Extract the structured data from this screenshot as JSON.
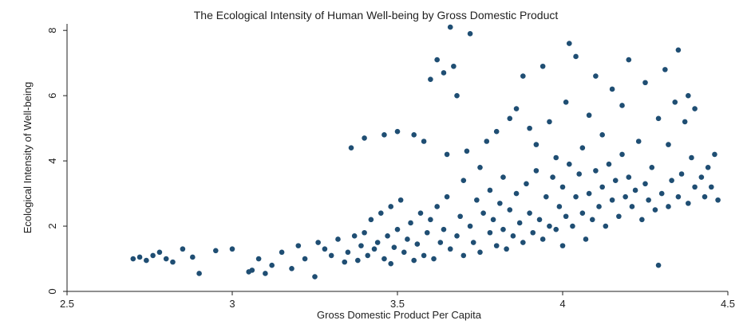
{
  "chart_data": {
    "type": "scatter",
    "title": "The Ecological Intensity of Human Well-being by Gross Domestic Product",
    "xlabel": "Gross Domestic Product Per Capita",
    "ylabel": "Ecological Intensity of Well-being",
    "xlim": [
      2.5,
      4.5
    ],
    "ylim": [
      0,
      8.2
    ],
    "x_ticks": [
      "2.5",
      "3",
      "3.5",
      "4",
      "4.5"
    ],
    "y_ticks": [
      "0",
      "2",
      "4",
      "6",
      "8"
    ],
    "grid": false,
    "marker_color": "#1f4e73",
    "background": "#ffffff",
    "points": [
      [
        2.7,
        1.0
      ],
      [
        2.72,
        1.05
      ],
      [
        2.74,
        0.95
      ],
      [
        2.76,
        1.1
      ],
      [
        2.78,
        1.2
      ],
      [
        2.8,
        1.0
      ],
      [
        2.82,
        0.9
      ],
      [
        2.85,
        1.3
      ],
      [
        2.88,
        1.05
      ],
      [
        2.9,
        0.55
      ],
      [
        2.95,
        1.25
      ],
      [
        3.0,
        1.3
      ],
      [
        3.05,
        0.6
      ],
      [
        3.06,
        0.65
      ],
      [
        3.08,
        1.0
      ],
      [
        3.1,
        0.55
      ],
      [
        3.12,
        0.8
      ],
      [
        3.15,
        1.2
      ],
      [
        3.18,
        0.7
      ],
      [
        3.2,
        1.4
      ],
      [
        3.22,
        1.0
      ],
      [
        3.25,
        0.45
      ],
      [
        3.26,
        1.5
      ],
      [
        3.28,
        1.3
      ],
      [
        3.3,
        1.1
      ],
      [
        3.32,
        1.6
      ],
      [
        3.34,
        0.9
      ],
      [
        3.35,
        1.2
      ],
      [
        3.36,
        4.4
      ],
      [
        3.37,
        1.7
      ],
      [
        3.38,
        0.95
      ],
      [
        3.39,
        1.4
      ],
      [
        3.4,
        1.8
      ],
      [
        3.4,
        4.7
      ],
      [
        3.41,
        1.1
      ],
      [
        3.42,
        2.2
      ],
      [
        3.43,
        1.3
      ],
      [
        3.44,
        1.5
      ],
      [
        3.45,
        2.4
      ],
      [
        3.46,
        4.8
      ],
      [
        3.46,
        1.0
      ],
      [
        3.47,
        1.7
      ],
      [
        3.48,
        0.85
      ],
      [
        3.48,
        2.6
      ],
      [
        3.49,
        1.35
      ],
      [
        3.5,
        1.9
      ],
      [
        3.5,
        4.9
      ],
      [
        3.51,
        2.8
      ],
      [
        3.52,
        1.2
      ],
      [
        3.53,
        1.6
      ],
      [
        3.54,
        2.1
      ],
      [
        3.55,
        0.95
      ],
      [
        3.55,
        4.8
      ],
      [
        3.56,
        1.45
      ],
      [
        3.57,
        2.4
      ],
      [
        3.58,
        1.1
      ],
      [
        3.58,
        4.6
      ],
      [
        3.59,
        1.8
      ],
      [
        3.6,
        2.2
      ],
      [
        3.6,
        6.5
      ],
      [
        3.61,
        1.0
      ],
      [
        3.62,
        2.6
      ],
      [
        3.62,
        7.1
      ],
      [
        3.63,
        1.5
      ],
      [
        3.64,
        1.9
      ],
      [
        3.64,
        6.7
      ],
      [
        3.65,
        2.9
      ],
      [
        3.65,
        4.2
      ],
      [
        3.66,
        1.3
      ],
      [
        3.66,
        8.1
      ],
      [
        3.67,
        6.9
      ],
      [
        3.68,
        1.7
      ],
      [
        3.68,
        6.0
      ],
      [
        3.69,
        2.3
      ],
      [
        3.7,
        1.1
      ],
      [
        3.7,
        3.4
      ],
      [
        3.71,
        4.3
      ],
      [
        3.72,
        2.0
      ],
      [
        3.72,
        7.9
      ],
      [
        3.73,
        1.5
      ],
      [
        3.74,
        2.8
      ],
      [
        3.75,
        1.2
      ],
      [
        3.75,
        3.8
      ],
      [
        3.76,
        2.4
      ],
      [
        3.77,
        4.6
      ],
      [
        3.78,
        1.8
      ],
      [
        3.78,
        3.1
      ],
      [
        3.79,
        2.2
      ],
      [
        3.8,
        1.4
      ],
      [
        3.8,
        4.9
      ],
      [
        3.81,
        2.7
      ],
      [
        3.82,
        1.9
      ],
      [
        3.82,
        3.5
      ],
      [
        3.83,
        1.3
      ],
      [
        3.84,
        2.5
      ],
      [
        3.84,
        5.3
      ],
      [
        3.85,
        1.7
      ],
      [
        3.86,
        3.0
      ],
      [
        3.86,
        5.6
      ],
      [
        3.87,
        2.1
      ],
      [
        3.88,
        1.5
      ],
      [
        3.88,
        6.6
      ],
      [
        3.89,
        3.3
      ],
      [
        3.9,
        2.4
      ],
      [
        3.9,
        5.0
      ],
      [
        3.91,
        1.8
      ],
      [
        3.92,
        3.7
      ],
      [
        3.92,
        4.5
      ],
      [
        3.93,
        2.2
      ],
      [
        3.94,
        1.6
      ],
      [
        3.94,
        6.9
      ],
      [
        3.95,
        2.9
      ],
      [
        3.96,
        2.0
      ],
      [
        3.96,
        5.2
      ],
      [
        3.97,
        3.5
      ],
      [
        3.98,
        1.9
      ],
      [
        3.98,
        4.1
      ],
      [
        3.99,
        2.6
      ],
      [
        4.0,
        1.4
      ],
      [
        4.0,
        3.2
      ],
      [
        4.01,
        2.3
      ],
      [
        4.01,
        5.8
      ],
      [
        4.02,
        3.9
      ],
      [
        4.02,
        7.6
      ],
      [
        4.03,
        2.0
      ],
      [
        4.04,
        2.9
      ],
      [
        4.04,
        7.2
      ],
      [
        4.05,
        3.6
      ],
      [
        4.06,
        2.4
      ],
      [
        4.06,
        4.4
      ],
      [
        4.07,
        1.6
      ],
      [
        4.08,
        3.0
      ],
      [
        4.08,
        5.4
      ],
      [
        4.09,
        2.2
      ],
      [
        4.1,
        3.7
      ],
      [
        4.1,
        6.6
      ],
      [
        4.11,
        2.6
      ],
      [
        4.12,
        3.2
      ],
      [
        4.12,
        4.8
      ],
      [
        4.13,
        2.0
      ],
      [
        4.14,
        3.9
      ],
      [
        4.15,
        2.8
      ],
      [
        4.15,
        6.2
      ],
      [
        4.16,
        3.4
      ],
      [
        4.17,
        2.3
      ],
      [
        4.18,
        4.2
      ],
      [
        4.18,
        5.7
      ],
      [
        4.19,
        2.9
      ],
      [
        4.2,
        3.5
      ],
      [
        4.2,
        7.1
      ],
      [
        4.21,
        2.6
      ],
      [
        4.22,
        3.1
      ],
      [
        4.23,
        4.6
      ],
      [
        4.24,
        2.2
      ],
      [
        4.25,
        3.3
      ],
      [
        4.25,
        6.4
      ],
      [
        4.26,
        2.8
      ],
      [
        4.27,
        3.8
      ],
      [
        4.28,
        2.5
      ],
      [
        4.29,
        0.8
      ],
      [
        4.29,
        5.3
      ],
      [
        4.3,
        3.0
      ],
      [
        4.31,
        6.8
      ],
      [
        4.32,
        2.6
      ],
      [
        4.32,
        4.5
      ],
      [
        4.33,
        3.4
      ],
      [
        4.34,
        5.8
      ],
      [
        4.35,
        2.9
      ],
      [
        4.35,
        7.4
      ],
      [
        4.36,
        3.6
      ],
      [
        4.37,
        5.2
      ],
      [
        4.38,
        2.7
      ],
      [
        4.38,
        6.0
      ],
      [
        4.39,
        4.1
      ],
      [
        4.4,
        3.2
      ],
      [
        4.4,
        5.6
      ],
      [
        4.42,
        3.5
      ],
      [
        4.43,
        2.9
      ],
      [
        4.44,
        3.8
      ],
      [
        4.45,
        3.2
      ],
      [
        4.46,
        4.2
      ],
      [
        4.47,
        2.8
      ]
    ]
  }
}
